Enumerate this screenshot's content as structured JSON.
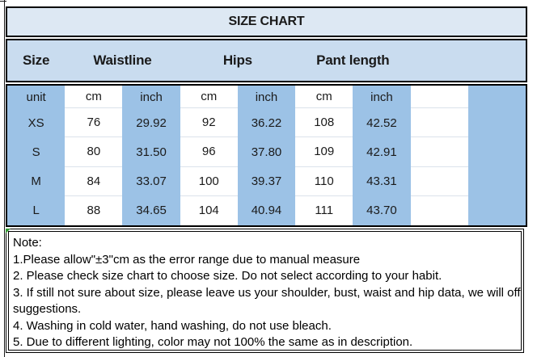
{
  "title": "SIZE CHART",
  "table": {
    "group_headers": {
      "size": "Size",
      "waistline": "Waistline",
      "hips": "Hips",
      "pant_length": "Pant length"
    },
    "unit_row": [
      "unit",
      "cm",
      "inch",
      "cm",
      "inch",
      "cm",
      "inch",
      "",
      ""
    ],
    "rows": [
      [
        "XS",
        "76",
        "29.92",
        "92",
        "36.22",
        "108",
        "42.52",
        "",
        ""
      ],
      [
        "S",
        "80",
        "31.50",
        "96",
        "37.80",
        "109",
        "42.91",
        "",
        ""
      ],
      [
        "M",
        "84",
        "33.07",
        "100",
        "39.37",
        "110",
        "43.31",
        "",
        ""
      ],
      [
        "L",
        "88",
        "34.65",
        "104",
        "40.94",
        "111",
        "43.70",
        "",
        ""
      ]
    ]
  },
  "notes": {
    "heading": "Note:",
    "lines": [
      "1.Please allow\"±3\"cm as the error range due to manual measure",
      "2. Please check size chart to choose size. Do not select according to your habit.",
      "3. If still not sure about size, please leave us your shoulder, bust, waist and hip data, we will offer",
      "suggestions.",
      "4. Washing in cold water, hand washing, do not use bleach.",
      "5. Due to different lighting, color may not 100% the same as in description."
    ]
  },
  "colors": {
    "title_bg": "#dde8f3",
    "header_bg": "#c9dcef",
    "stripe_blue": "#9cc2e6",
    "border": "#000000",
    "error_indicator_green": "#339933"
  }
}
